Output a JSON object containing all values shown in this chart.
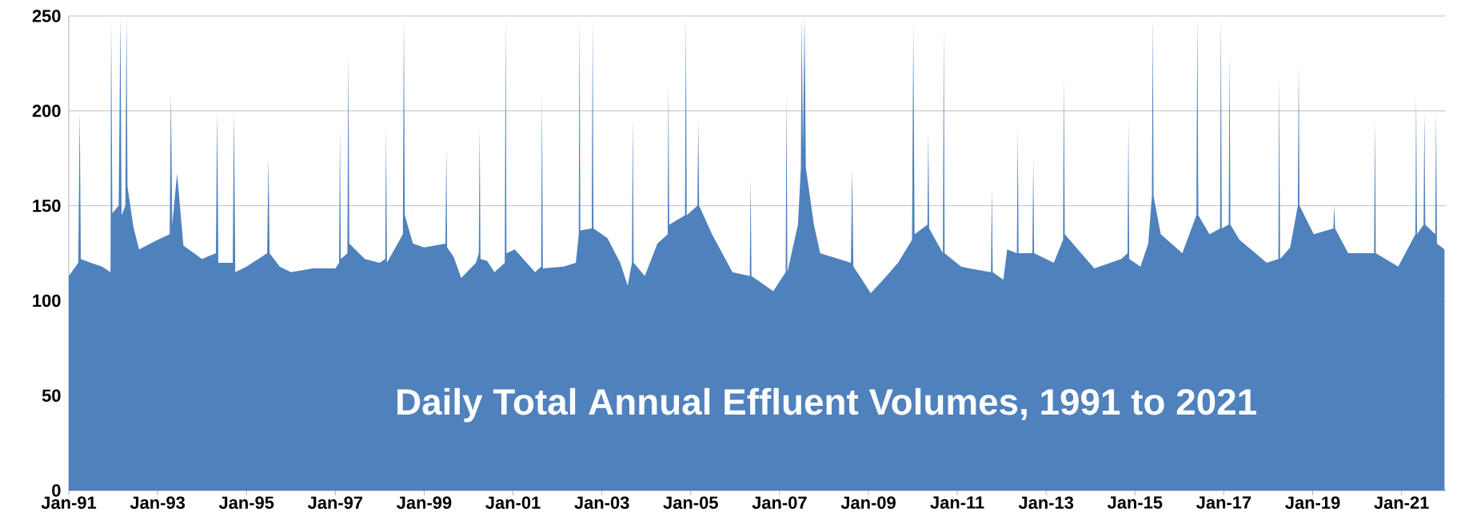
{
  "chart_data": {
    "type": "area",
    "title": "Daily Total Annual Effluent Volumes, 1991 to 2021",
    "color": "#4f81bd",
    "grid": "y",
    "xlim": [
      "1991-01-01",
      "2021-12-31"
    ],
    "ylim": [
      0,
      250
    ],
    "yticks": [
      0,
      50,
      100,
      150,
      200,
      250
    ],
    "xticks": [
      {
        "value": "1991-01",
        "label": "Jan-91"
      },
      {
        "value": "1993-01",
        "label": "Jan-93"
      },
      {
        "value": "1995-01",
        "label": "Jan-95"
      },
      {
        "value": "1997-01",
        "label": "Jan-97"
      },
      {
        "value": "1999-01",
        "label": "Jan-99"
      },
      {
        "value": "2001-01",
        "label": "Jan-01"
      },
      {
        "value": "2003-01",
        "label": "Jan-03"
      },
      {
        "value": "2005-01",
        "label": "Jan-05"
      },
      {
        "value": "2007-01",
        "label": "Jan-07"
      },
      {
        "value": "2009-01",
        "label": "Jan-09"
      },
      {
        "value": "2011-01",
        "label": "Jan-11"
      },
      {
        "value": "2013-01",
        "label": "Jan-13"
      },
      {
        "value": "2015-01",
        "label": "Jan-15"
      },
      {
        "value": "2017-01",
        "label": "Jan-17"
      },
      {
        "value": "2019-01",
        "label": "Jan-19"
      },
      {
        "value": "2021-01",
        "label": "Jan-21"
      }
    ],
    "x": [
      "1991-01-01",
      "1991-03-20",
      "1991-04-01",
      "1991-04-10",
      "1991-07-01",
      "1991-10-01",
      "1991-12-10",
      "1991-12-15",
      "1991-12-25",
      "1992-02-15",
      "1992-03-01",
      "1992-03-10",
      "1992-04-10",
      "1992-04-20",
      "1992-04-28",
      "1992-06-15",
      "1992-08-01",
      "1993-01-01",
      "1993-04-10",
      "1993-04-20",
      "1993-05-01",
      "1993-06-10",
      "1993-08-01",
      "1994-01-01",
      "1994-04-25",
      "1994-05-05",
      "1994-05-15",
      "1994-09-10",
      "1994-09-20",
      "1994-10-01",
      "1995-01-01",
      "1995-06-20",
      "1995-07-01",
      "1995-07-10",
      "1995-10-01",
      "1996-01-01",
      "1996-07-01",
      "1997-01-01",
      "1997-02-01",
      "1997-02-08",
      "1997-02-15",
      "1997-04-10",
      "1997-04-18",
      "1997-04-26",
      "1997-09-01",
      "1998-01-01",
      "1998-02-15",
      "1998-02-22",
      "1998-03-01",
      "1998-07-10",
      "1998-07-18",
      "1998-07-26",
      "1998-10-01",
      "1999-01-01",
      "1999-06-25",
      "1999-07-02",
      "1999-07-09",
      "1999-09-01",
      "1999-11-01",
      "2000-03-01",
      "2000-03-25",
      "2000-04-01",
      "2000-04-08",
      "2000-06-01",
      "2000-08-01",
      "2000-10-25",
      "2000-11-01",
      "2000-11-08",
      "2001-01-15",
      "2001-07-01",
      "2001-08-20",
      "2001-08-27",
      "2001-09-03",
      "2002-02-20",
      "2002-06-01",
      "2002-06-25",
      "2002-07-01",
      "2002-07-08",
      "2002-10-10",
      "2002-10-17",
      "2002-10-24",
      "2003-02-15",
      "2003-06-01",
      "2003-08-01",
      "2003-09-05",
      "2003-09-12",
      "2003-09-19",
      "2003-12-20",
      "2004-04-01",
      "2004-06-25",
      "2004-07-01",
      "2004-07-08",
      "2004-11-15",
      "2004-11-22",
      "2004-11-29",
      "2005-02-25",
      "2005-03-04",
      "2005-03-11",
      "2005-06-25",
      "2005-12-10",
      "2006-05-01",
      "2006-05-08",
      "2006-05-15",
      "2006-11-10",
      "2007-02-20",
      "2007-02-27",
      "2007-03-06",
      "2007-06-01",
      "2007-06-25",
      "2007-07-01",
      "2007-07-12",
      "2007-07-25",
      "2007-08-05",
      "2007-10-10",
      "2007-12-01",
      "2008-08-10",
      "2008-08-20",
      "2008-08-30",
      "2008-11-01",
      "2009-01-20",
      "2009-05-15",
      "2009-09-01",
      "2009-12-25",
      "2010-01-05",
      "2010-01-15",
      "2010-05-01",
      "2010-05-08",
      "2010-05-15",
      "2010-09-05",
      "2010-09-12",
      "2010-09-19",
      "2011-02-01",
      "2011-04-10",
      "2011-10-05",
      "2011-10-12",
      "2011-10-19",
      "2012-01-15",
      "2012-02-15",
      "2012-05-05",
      "2012-05-12",
      "2012-05-19",
      "2012-09-10",
      "2012-09-17",
      "2012-09-24",
      "2013-03-05",
      "2013-05-20",
      "2013-05-27",
      "2013-06-03",
      "2014-02-01",
      "2014-09-10",
      "2014-11-01",
      "2014-11-08",
      "2014-11-15",
      "2015-02-15",
      "2015-04-20",
      "2015-05-20",
      "2015-05-27",
      "2015-06-03",
      "2015-08-01",
      "2016-01-25",
      "2016-05-20",
      "2016-05-28",
      "2016-06-05",
      "2016-09-05",
      "2016-12-01",
      "2016-12-08",
      "2016-12-15",
      "2017-02-10",
      "2017-02-17",
      "2017-02-24",
      "2017-05-10",
      "2017-12-20",
      "2018-03-25",
      "2018-04-01",
      "2018-04-08",
      "2018-06-30",
      "2018-09-01",
      "2018-09-08",
      "2018-09-15",
      "2019-01-10",
      "2019-06-20",
      "2019-06-27",
      "2019-07-04",
      "2019-10-20",
      "2020-05-20",
      "2020-05-27",
      "2020-06-03",
      "2020-12-05",
      "2021-04-25",
      "2021-05-01",
      "2021-05-08",
      "2021-07-01",
      "2021-07-08",
      "2021-07-15",
      "2021-10-05",
      "2021-10-12",
      "2021-10-19",
      "2021-12-20"
    ],
    "values": [
      113,
      120,
      200,
      122,
      120,
      118,
      115,
      250,
      146,
      150,
      250,
      145,
      150,
      250,
      160,
      139,
      127,
      132,
      135,
      210,
      140,
      167,
      129,
      122,
      125,
      200,
      120,
      120,
      200,
      115,
      118,
      125,
      175,
      125,
      118,
      115,
      117,
      117,
      120,
      190,
      122,
      125,
      230,
      130,
      122,
      120,
      122,
      190,
      120,
      135,
      250,
      145,
      130,
      128,
      130,
      180,
      128,
      123,
      112,
      120,
      125,
      192,
      122,
      121,
      115,
      120,
      250,
      125,
      127,
      115,
      118,
      210,
      117,
      118,
      120,
      135,
      250,
      137,
      138,
      250,
      138,
      133,
      120,
      108,
      120,
      197,
      120,
      113,
      130,
      135,
      215,
      140,
      145,
      250,
      145,
      150,
      195,
      150,
      135,
      115,
      113,
      165,
      113,
      105,
      115,
      210,
      115,
      140,
      170,
      250,
      180,
      250,
      170,
      140,
      125,
      120,
      170,
      118,
      112,
      104,
      112,
      120,
      132,
      245,
      135,
      140,
      190,
      138,
      125,
      245,
      125,
      118,
      117,
      115,
      160,
      115,
      111,
      127,
      125,
      190,
      125,
      125,
      175,
      125,
      120,
      132,
      218,
      135,
      117,
      122,
      125,
      195,
      122,
      118,
      130,
      155,
      250,
      155,
      135,
      125,
      145,
      250,
      145,
      135,
      138,
      250,
      138,
      140,
      230,
      140,
      132,
      120,
      122,
      218,
      122,
      128,
      150,
      225,
      150,
      135,
      138,
      150,
      138,
      125,
      125,
      195,
      125,
      118,
      135,
      210,
      135,
      140,
      200,
      140,
      135,
      200,
      130,
      127
    ]
  }
}
